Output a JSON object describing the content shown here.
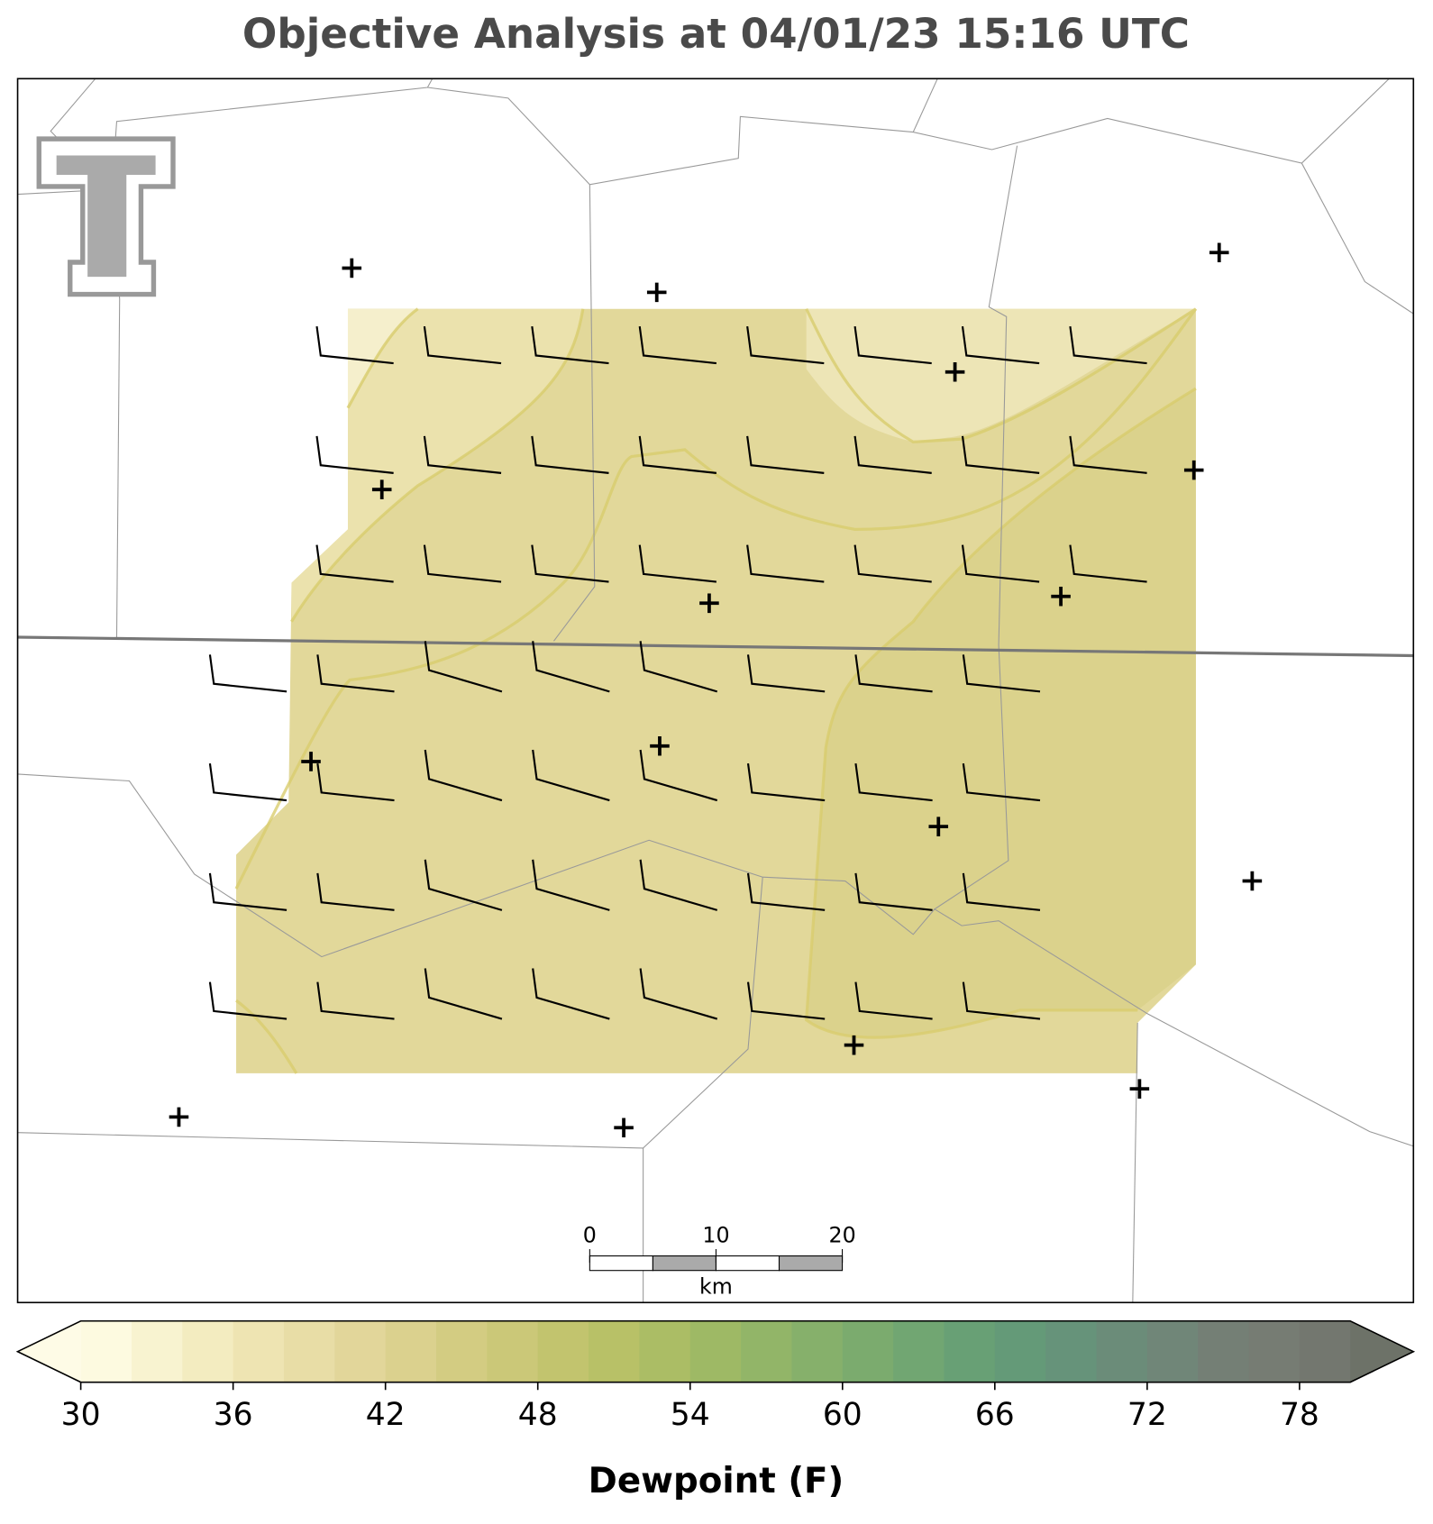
{
  "title": "Objective Analysis at 04/01/23 15:16 UTC",
  "colorbar": {
    "label": "Dewpoint (F)",
    "lim": [
      30,
      80
    ],
    "ticks": [
      30,
      36,
      42,
      48,
      54,
      60,
      66,
      72,
      78
    ],
    "colors": [
      "#fdfae0",
      "#f8f3d0",
      "#f3ecc0",
      "#eee4b2",
      "#e8dda6",
      "#e2d69a",
      "#dbd18e",
      "#d3cc82",
      "#cbc878",
      "#c2c46e",
      "#b8c167",
      "#abbd65",
      "#9eb965",
      "#92b568",
      "#86b06b",
      "#7bab6e",
      "#71a672",
      "#68a075",
      "#649a78",
      "#66937a",
      "#6b8c79",
      "#708678",
      "#747f75",
      "#767c73",
      "#73776f"
    ],
    "under_color": "#fefbe6",
    "over_color": "#6d7268"
  },
  "scale_bar": {
    "ticks": [
      0,
      10,
      20
    ],
    "unit": "km"
  }
}
